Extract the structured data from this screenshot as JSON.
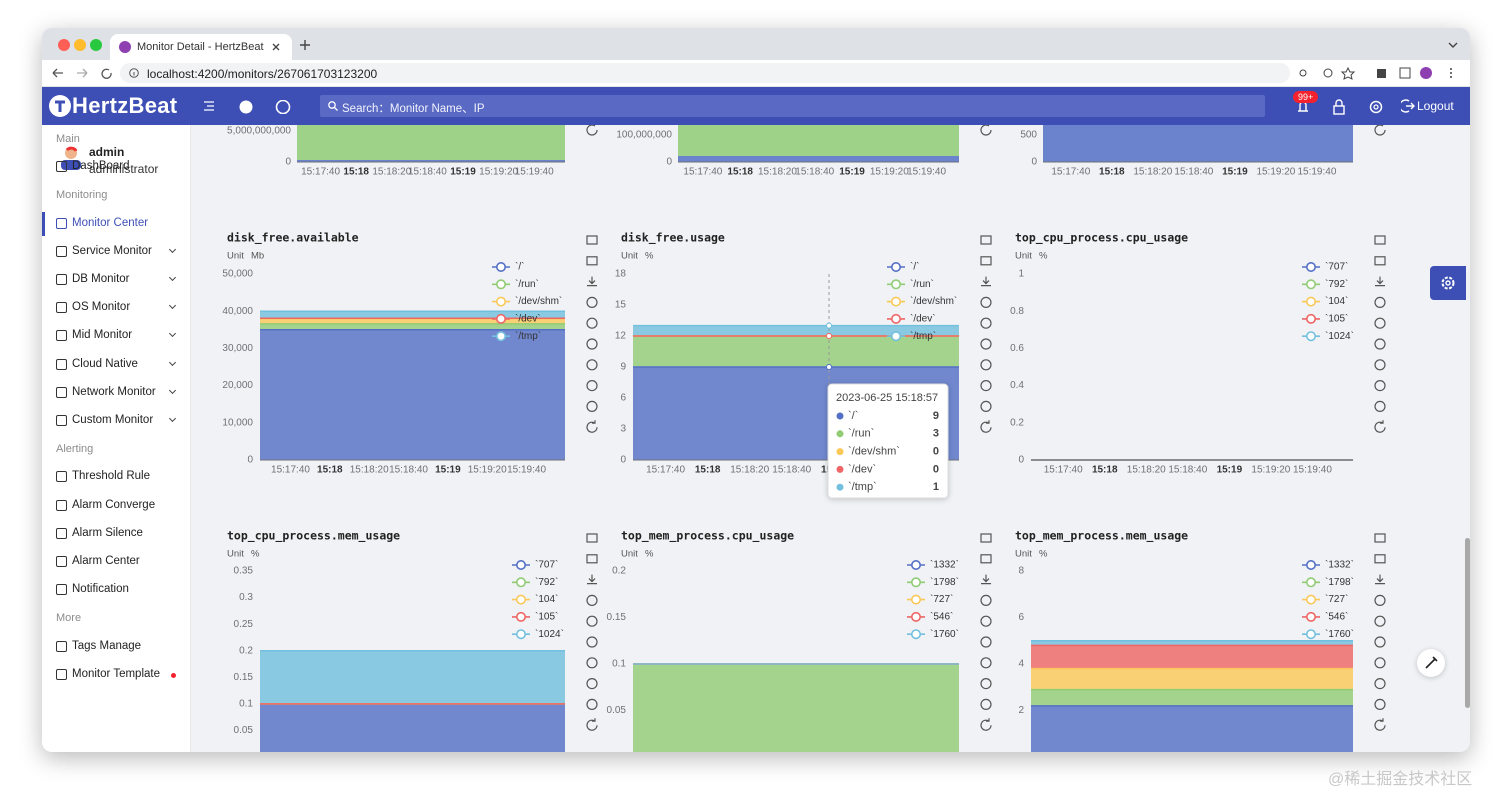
{
  "browser": {
    "tab_title": "Monitor Detail - HertzBeat",
    "url": "localhost:4200/monitors/267061703123200"
  },
  "header": {
    "logo": "HertzBeat",
    "search_placeholder": "Search：Monitor Name、IP",
    "badge": "99+",
    "logout": "Logout"
  },
  "sidebar": {
    "user": {
      "name": "admin",
      "role": "administrator"
    },
    "groups": [
      {
        "title": "Main",
        "items": [
          {
            "label": "DashBoard"
          }
        ]
      },
      {
        "title": "Monitoring",
        "items": [
          {
            "label": "Monitor Center",
            "active": true
          },
          {
            "label": "Service Monitor",
            "chevron": true
          },
          {
            "label": "DB Monitor",
            "chevron": true
          },
          {
            "label": "OS Monitor",
            "chevron": true
          },
          {
            "label": "Mid Monitor",
            "chevron": true
          },
          {
            "label": "Cloud Native",
            "chevron": true
          },
          {
            "label": "Network Monitor",
            "chevron": true
          },
          {
            "label": "Custom Monitor",
            "chevron": true
          }
        ]
      },
      {
        "title": "Alerting",
        "items": [
          {
            "label": "Threshold Rule"
          },
          {
            "label": "Alarm Converge"
          },
          {
            "label": "Alarm Silence"
          },
          {
            "label": "Alarm Center"
          },
          {
            "label": "Notification"
          }
        ]
      },
      {
        "title": "More",
        "items": [
          {
            "label": "Tags Manage"
          },
          {
            "label": "Monitor Template",
            "dot": true
          }
        ]
      }
    ]
  },
  "time_axis": [
    {
      "label": "15:17:40"
    },
    {
      "label": "15:18",
      "bold": true
    },
    {
      "label": "15:18:20"
    },
    {
      "label": "15:18:40"
    },
    {
      "label": "15:19",
      "bold": true
    },
    {
      "label": "15:19:20"
    },
    {
      "label": "15:19:40"
    }
  ],
  "top_charts": [
    {
      "yticks": [
        {
          "value": 5000000000,
          "label": "5,000,000,000"
        },
        0
      ]
    },
    {
      "yticks": [
        {
          "value": 100000000,
          "label": "100,000,000"
        },
        0
      ]
    },
    {
      "yticks": [
        500,
        0
      ]
    }
  ],
  "charts": [
    {
      "type": "area",
      "title": "disk_free.available",
      "unit_label": "Unit",
      "unit": "Mb",
      "ylim": [
        0,
        50000
      ],
      "yticks": [
        {
          "value": 0,
          "label": "0"
        },
        {
          "value": 10000,
          "label": "10,000"
        },
        {
          "value": 20000,
          "label": "20,000"
        },
        {
          "value": 30000,
          "label": "30,000"
        },
        {
          "value": 40000,
          "label": "40,000"
        },
        {
          "value": 50000,
          "label": "50,000"
        }
      ],
      "series": [
        {
          "name": "`/`",
          "color": "#5470c6",
          "value": 35000
        },
        {
          "name": "`/run`",
          "color": "#91cc75",
          "value": 1600
        },
        {
          "name": "`/dev/shm`",
          "color": "#fac858",
          "value": 1400
        },
        {
          "name": "`/dev`",
          "color": "#ee6666",
          "value": 100
        },
        {
          "name": "`/tmp`",
          "color": "#73c0de",
          "value": 1900
        }
      ]
    },
    {
      "type": "area",
      "title": "disk_free.usage",
      "unit_label": "Unit",
      "unit": "%",
      "ylim": [
        0,
        18
      ],
      "yticks": [
        0,
        3,
        6,
        9,
        12,
        15,
        18
      ],
      "tooltip": {
        "time": "2023-06-25 15:18:57"
      },
      "series": [
        {
          "name": "`/`",
          "color": "#5470c6",
          "value": 9
        },
        {
          "name": "`/run`",
          "color": "#91cc75",
          "value": 3
        },
        {
          "name": "`/dev/shm`",
          "color": "#fac858",
          "value": 0
        },
        {
          "name": "`/dev`",
          "color": "#ee6666",
          "value": 0
        },
        {
          "name": "`/tmp`",
          "color": "#73c0de",
          "value": 1
        }
      ]
    },
    {
      "type": "area",
      "title": "top_cpu_process.cpu_usage",
      "unit_label": "Unit",
      "unit": "%",
      "ylim": [
        0,
        1
      ],
      "yticks": [
        0,
        0.2,
        0.4,
        0.6,
        0.8,
        1
      ],
      "series": [
        {
          "name": "`707`",
          "color": "#5470c6",
          "value": 0
        },
        {
          "name": "`792`",
          "color": "#91cc75",
          "value": 0
        },
        {
          "name": "`104`",
          "color": "#fac858",
          "value": 0
        },
        {
          "name": "`105`",
          "color": "#ee6666",
          "value": 0
        },
        {
          "name": "`1024`",
          "color": "#73c0de",
          "value": 0
        }
      ]
    },
    {
      "type": "area",
      "title": "top_cpu_process.mem_usage",
      "unit_label": "Unit",
      "unit": "%",
      "ylim": [
        0,
        0.35
      ],
      "yticks": [
        0.05,
        0.1,
        0.15,
        0.2,
        0.25,
        0.3,
        0.35
      ],
      "series": [
        {
          "name": "`707`",
          "color": "#5470c6",
          "value": 0.1
        },
        {
          "name": "`792`",
          "color": "#91cc75",
          "value": 0
        },
        {
          "name": "`104`",
          "color": "#fac858",
          "value": 0
        },
        {
          "name": "`105`",
          "color": "#ee6666",
          "value": 0
        },
        {
          "name": "`1024`",
          "color": "#73c0de",
          "value": 0.1
        }
      ]
    },
    {
      "type": "area",
      "title": "top_mem_process.cpu_usage",
      "unit_label": "Unit",
      "unit": "%",
      "ylim": [
        0,
        0.2
      ],
      "yticks": [
        0.05,
        0.1,
        0.15,
        0.2
      ],
      "series": [
        {
          "name": "`1332`",
          "color": "#5470c6",
          "value": 0
        },
        {
          "name": "`1798`",
          "color": "#91cc75",
          "value": 0.1
        },
        {
          "name": "`727`",
          "color": "#fac858",
          "value": 0
        },
        {
          "name": "`546`",
          "color": "#ee6666",
          "value": 0
        },
        {
          "name": "`1760`",
          "color": "#73c0de",
          "value": 0
        }
      ]
    },
    {
      "type": "area",
      "title": "top_mem_process.mem_usage",
      "unit_label": "Unit",
      "unit": "%",
      "ylim": [
        0,
        8
      ],
      "yticks": [
        2,
        4,
        6,
        8
      ],
      "series": [
        {
          "name": "`1332`",
          "color": "#5470c6",
          "value": 2.2
        },
        {
          "name": "`1798`",
          "color": "#91cc75",
          "value": 0.7
        },
        {
          "name": "`727`",
          "color": "#fac858",
          "value": 0.9
        },
        {
          "name": "`546`",
          "color": "#ee6666",
          "value": 1.0
        },
        {
          "name": "`1760`",
          "color": "#73c0de",
          "value": 0.2
        }
      ]
    }
  ],
  "watermark": "@稀土掘金技术社区"
}
